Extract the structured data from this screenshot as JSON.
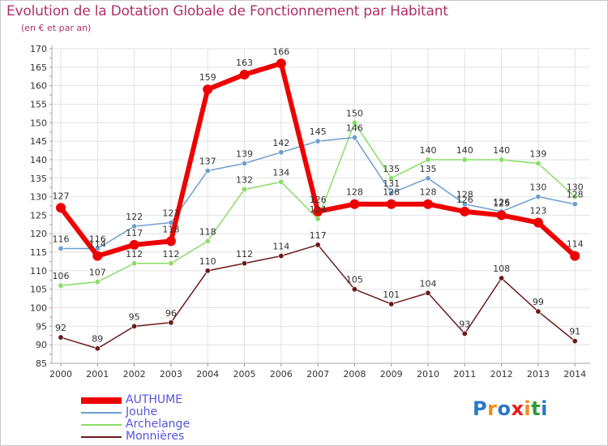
{
  "chart_data": {
    "type": "line",
    "title": "Evolution de la Dotation Globale de Fonctionnement par Habitant",
    "subtitle": "(en € et par an)",
    "x": [
      "2000",
      "2001",
      "2002",
      "2003",
      "2004",
      "2005",
      "2006",
      "2007",
      "2008",
      "2009",
      "2010",
      "2011",
      "2012",
      "2013",
      "2014"
    ],
    "ylim": [
      85,
      170
    ],
    "yticks": [
      85,
      90,
      95,
      100,
      105,
      110,
      115,
      120,
      125,
      130,
      135,
      140,
      145,
      150,
      155,
      160,
      165,
      170
    ],
    "grid": true,
    "legend_position": "bottom-left",
    "series": [
      {
        "name": "AUTHUME",
        "color": "#ee0000",
        "values": [
          127,
          114,
          117,
          118,
          159,
          163,
          166,
          126,
          128,
          128,
          128,
          126,
          125,
          123,
          114
        ]
      },
      {
        "name": "Jouhe",
        "color": "#6e9ecf",
        "values": [
          116,
          116,
          122,
          123,
          137,
          139,
          142,
          145,
          146,
          131,
          135,
          128,
          126,
          130,
          128
        ]
      },
      {
        "name": "Archelange",
        "color": "#88dd66",
        "values": [
          106,
          107,
          112,
          112,
          118,
          132,
          134,
          124,
          150,
          135,
          140,
          140,
          140,
          139,
          130
        ]
      },
      {
        "name": "Monnières",
        "color": "#6b1a1a",
        "values": [
          92,
          89,
          95,
          96,
          110,
          112,
          114,
          117,
          105,
          101,
          104,
          93,
          108,
          99,
          91
        ]
      }
    ]
  },
  "legend": {
    "items": [
      "AUTHUME",
      "Jouhe",
      "Archelange",
      "Monnières"
    ],
    "label_color": "#5555dd"
  },
  "logo": {
    "text": "Proxiti",
    "letters": [
      "P",
      "r",
      "o",
      "x",
      "i",
      "t",
      "i"
    ],
    "colors": [
      "#2a78c8",
      "#f08c1c",
      "#2a78c8",
      "#e81c1c",
      "#f08c1c",
      "#2a9a3a",
      "#2a78c8"
    ]
  }
}
